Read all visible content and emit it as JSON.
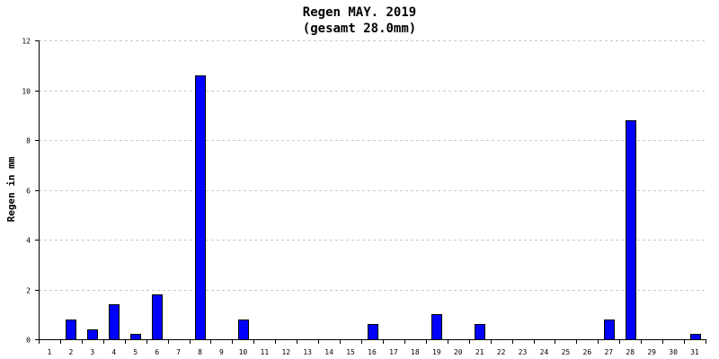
{
  "chart_data": {
    "type": "bar",
    "title": "Regen MAY. 2019",
    "subtitle": "(gesamt 28.0mm)",
    "xlabel": "",
    "ylabel": "Regen in mm",
    "categories": [
      "1",
      "2",
      "3",
      "4",
      "5",
      "6",
      "7",
      "8",
      "9",
      "10",
      "11",
      "12",
      "13",
      "14",
      "15",
      "16",
      "17",
      "18",
      "19",
      "20",
      "21",
      "22",
      "23",
      "24",
      "25",
      "26",
      "27",
      "28",
      "29",
      "30",
      "31"
    ],
    "values": [
      0,
      0.8,
      0.4,
      1.4,
      0.2,
      1.8,
      0,
      10.6,
      0,
      0.8,
      0,
      0,
      0,
      0,
      0,
      0.6,
      0,
      0,
      1.0,
      0,
      0.6,
      0,
      0,
      0,
      0,
      0,
      0.8,
      8.8,
      0,
      0,
      0.2
    ],
    "ylim": [
      0,
      12
    ],
    "yticks": [
      0,
      2,
      4,
      6,
      8,
      10,
      12
    ],
    "grid": true,
    "bar_color": "#0000ff",
    "legend": "none"
  }
}
